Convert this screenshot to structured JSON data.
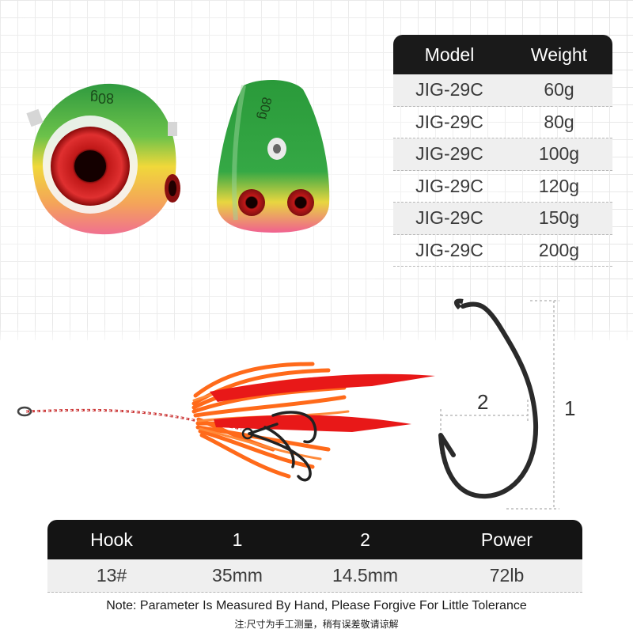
{
  "model_table": {
    "headers": [
      "Model",
      "Weight"
    ],
    "rows": [
      [
        "JIG-29C",
        "60g"
      ],
      [
        "JIG-29C",
        "80g"
      ],
      [
        "JIG-29C",
        "100g"
      ],
      [
        "JIG-29C",
        "120g"
      ],
      [
        "JIG-29C",
        "150g"
      ],
      [
        "JIG-29C",
        "200g"
      ]
    ]
  },
  "jig_side_label": "80g",
  "jig_front_label": "80g",
  "hook_dimensions": {
    "label_1": "1",
    "label_2": "2"
  },
  "hook_table": {
    "headers": [
      "Hook",
      "1",
      "2",
      "Power"
    ],
    "row": [
      "13#",
      "35mm",
      "14.5mm",
      "72lb"
    ]
  },
  "note_en": "Note: Parameter Is Measured By Hand, Please Forgive For Little Tolerance",
  "note_zh": "注:尺寸为手工测量，稍有误差敬请谅解",
  "colors": {
    "table_header": "#1a1a1a",
    "row_shade": "#efefef",
    "skirt": "#ff6a1a",
    "jig_green": "#3aa845"
  }
}
